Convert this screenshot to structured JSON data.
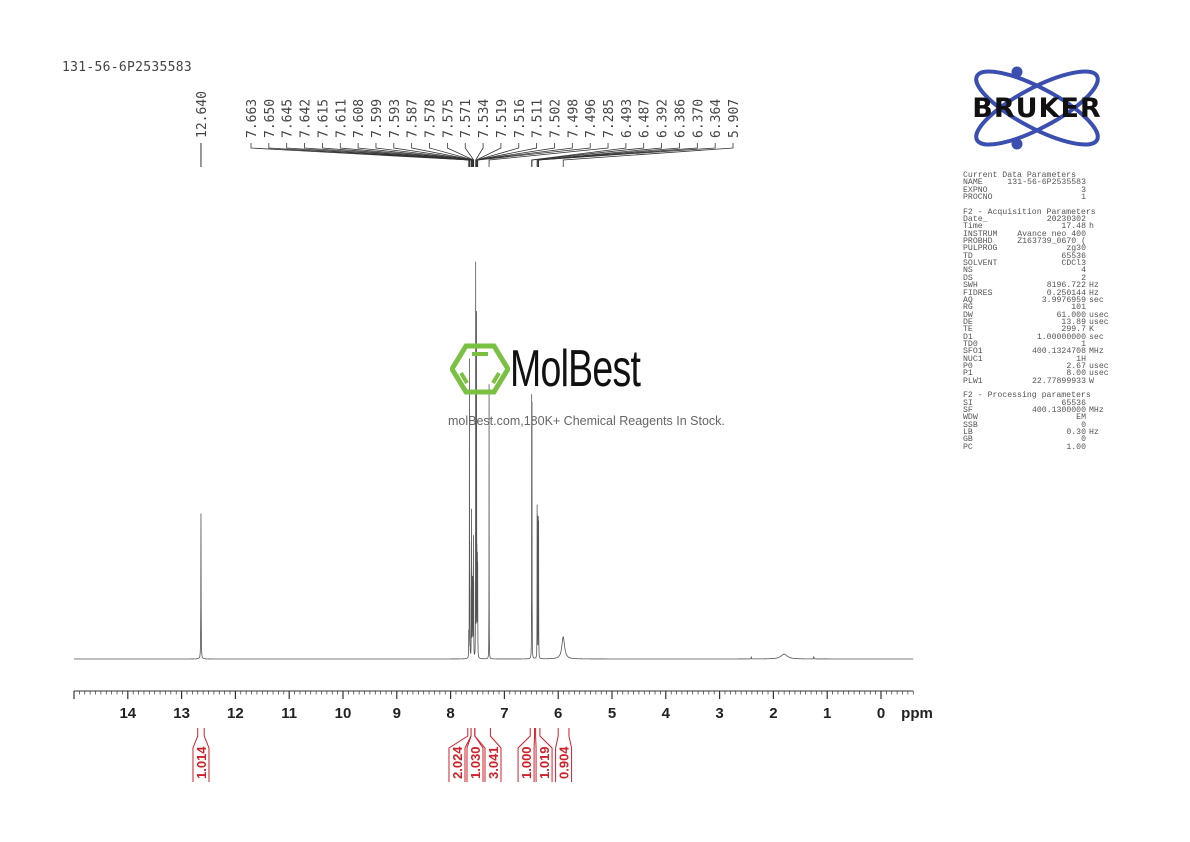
{
  "sample_title": "131-56-6P2535583",
  "colors": {
    "spectrum": "#555555",
    "integral": "#d0202a",
    "bruker_blue": "#3a4fb0",
    "molbest_green": "#7ac143"
  },
  "watermark": {
    "brand": "MolBest",
    "tagline": "molBest.com,180K+ Chemical Reagents In Stock."
  },
  "bruker_logo": {
    "text": "BRUKER"
  },
  "parameters": {
    "sections": [
      {
        "title": "Current Data Parameters",
        "rows": [
          [
            "NAME",
            "131-56-6P2535583",
            ""
          ],
          [
            "EXPNO",
            "3",
            ""
          ],
          [
            "PROCNO",
            "1",
            ""
          ]
        ]
      },
      {
        "title": "F2 - Acquisition Parameters",
        "rows": [
          [
            "Date_",
            "20230302",
            ""
          ],
          [
            "Time",
            "17.48",
            "h"
          ],
          [
            "INSTRUM",
            "Avance neo 400",
            ""
          ],
          [
            "PROBHD",
            "Z163739_0670 (",
            ""
          ],
          [
            "PULPROG",
            "zg30",
            ""
          ],
          [
            "TD",
            "65536",
            ""
          ],
          [
            "SOLVENT",
            "CDCl3",
            ""
          ],
          [
            "NS",
            "4",
            ""
          ],
          [
            "DS",
            "2",
            ""
          ],
          [
            "SWH",
            "8196.722",
            "Hz"
          ],
          [
            "FIDRES",
            "0.250144",
            "Hz"
          ],
          [
            "AQ",
            "3.9976959",
            "sec"
          ],
          [
            "RG",
            "101",
            ""
          ],
          [
            "DW",
            "61.000",
            "usec"
          ],
          [
            "DE",
            "13.89",
            "usec"
          ],
          [
            "TE",
            "299.7",
            "K"
          ],
          [
            "D1",
            "1.00000000",
            "sec"
          ],
          [
            "TD0",
            "1",
            ""
          ],
          [
            "SFO1",
            "400.1324708",
            "MHz"
          ],
          [
            "NUC1",
            "1H",
            ""
          ],
          [
            "P0",
            "2.67",
            "usec"
          ],
          [
            "P1",
            "8.00",
            "usec"
          ],
          [
            "PLW1",
            "22.77899933",
            "W"
          ]
        ]
      },
      {
        "title": "F2 - Processing parameters",
        "rows": [
          [
            "SI",
            "65536",
            ""
          ],
          [
            "SF",
            "400.1300000",
            "MHz"
          ],
          [
            "WDW",
            "EM",
            ""
          ],
          [
            "SSB",
            "0",
            ""
          ],
          [
            "LB",
            "0.30",
            "Hz"
          ],
          [
            "GB",
            "0",
            ""
          ],
          [
            "PC",
            "1.00",
            ""
          ]
        ]
      }
    ]
  },
  "chart_data": {
    "type": "line",
    "title": "",
    "xlabel": "ppm",
    "ylabel": "",
    "xlim": [
      15,
      -0.6
    ],
    "x_reversed": true,
    "grid": false,
    "x_ticks": [
      "14",
      "13",
      "12",
      "11",
      "10",
      "9",
      "8",
      "7",
      "6",
      "5",
      "4",
      "3",
      "2",
      "1",
      "0"
    ],
    "peaks": [
      {
        "ppm": 12.64,
        "intensity": 0.36,
        "width": 0.003
      },
      {
        "ppm": 7.663,
        "intensity": 0.06,
        "width": 0.0015
      },
      {
        "ppm": 7.65,
        "intensity": 0.72,
        "width": 0.0015
      },
      {
        "ppm": 7.645,
        "intensity": 0.2,
        "width": 0.0015
      },
      {
        "ppm": 7.642,
        "intensity": 0.15,
        "width": 0.0015
      },
      {
        "ppm": 7.615,
        "intensity": 0.12,
        "width": 0.0015
      },
      {
        "ppm": 7.611,
        "intensity": 0.32,
        "width": 0.0015
      },
      {
        "ppm": 7.608,
        "intensity": 0.15,
        "width": 0.0015
      },
      {
        "ppm": 7.599,
        "intensity": 0.12,
        "width": 0.0015
      },
      {
        "ppm": 7.593,
        "intensity": 0.18,
        "width": 0.0015
      },
      {
        "ppm": 7.587,
        "intensity": 0.14,
        "width": 0.0015
      },
      {
        "ppm": 7.578,
        "intensity": 0.15,
        "width": 0.0015
      },
      {
        "ppm": 7.575,
        "intensity": 0.25,
        "width": 0.0015
      },
      {
        "ppm": 7.571,
        "intensity": 0.15,
        "width": 0.0015
      },
      {
        "ppm": 7.534,
        "intensity": 0.97,
        "width": 0.0015
      },
      {
        "ppm": 7.519,
        "intensity": 0.78,
        "width": 0.0015
      },
      {
        "ppm": 7.516,
        "intensity": 0.3,
        "width": 0.0015
      },
      {
        "ppm": 7.511,
        "intensity": 0.22,
        "width": 0.0015
      },
      {
        "ppm": 7.502,
        "intensity": 0.22,
        "width": 0.0015
      },
      {
        "ppm": 7.498,
        "intensity": 0.15,
        "width": 0.0015
      },
      {
        "ppm": 7.496,
        "intensity": 0.15,
        "width": 0.0015
      },
      {
        "ppm": 7.285,
        "intensity": 0.68,
        "width": 0.0015
      },
      {
        "ppm": 6.493,
        "intensity": 0.62,
        "width": 0.0015
      },
      {
        "ppm": 6.487,
        "intensity": 0.6,
        "width": 0.0015
      },
      {
        "ppm": 6.392,
        "intensity": 0.36,
        "width": 0.0015
      },
      {
        "ppm": 6.386,
        "intensity": 0.33,
        "width": 0.0015
      },
      {
        "ppm": 6.37,
        "intensity": 0.33,
        "width": 0.0015
      },
      {
        "ppm": 6.364,
        "intensity": 0.32,
        "width": 0.0015
      },
      {
        "ppm": 5.907,
        "intensity": 0.055,
        "width": 0.03
      },
      {
        "ppm": 2.41,
        "intensity": 0.006,
        "width": 0.003
      },
      {
        "ppm": 1.8,
        "intensity": 0.012,
        "width": 0.07
      },
      {
        "ppm": 1.25,
        "intensity": 0.006,
        "width": 0.004
      }
    ],
    "peak_labels_single": [
      "12.640"
    ],
    "peak_labels_group": [
      "7.663",
      "7.650",
      "7.645",
      "7.642",
      "7.615",
      "7.611",
      "7.608",
      "7.599",
      "7.593",
      "7.587",
      "7.578",
      "7.575",
      "7.571",
      "7.534",
      "7.519",
      "7.516",
      "7.511",
      "7.502",
      "7.498",
      "7.496",
      "7.285",
      "6.493",
      "6.487",
      "6.392",
      "6.386",
      "6.370",
      "6.364",
      "5.907"
    ],
    "integrals": [
      {
        "label": "1.014",
        "from": 12.7,
        "to": 12.58
      },
      {
        "label": "2.024",
        "from": 7.68,
        "to": 7.62
      },
      {
        "label": "1.030",
        "from": 7.62,
        "to": 7.55
      },
      {
        "label": "3.041",
        "from": 7.55,
        "to": 7.26
      },
      {
        "label": "1.000",
        "from": 6.52,
        "to": 6.44
      },
      {
        "label": "1.019",
        "from": 6.42,
        "to": 6.34
      },
      {
        "label": "0.904",
        "from": 6.0,
        "to": 5.8
      }
    ]
  }
}
